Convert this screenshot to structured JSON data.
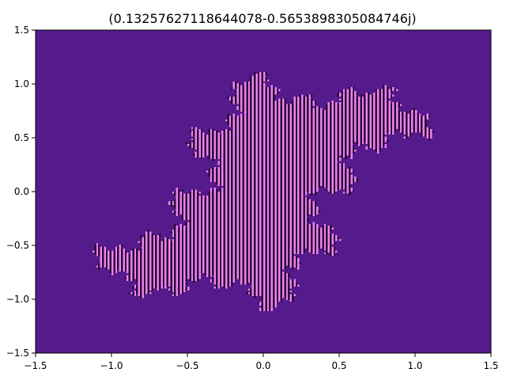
{
  "chart_data": {
    "type": "heatmap",
    "title": "(0.13257627118644078-0.5653898305084746j)",
    "xlabel": "",
    "ylabel": "",
    "xlim": [
      -1.5,
      1.5
    ],
    "ylim": [
      -1.5,
      1.5
    ],
    "x_ticks": [
      "−1.5",
      "−1.0",
      "−0.5",
      "0.0",
      "0.5",
      "1.0",
      "1.5"
    ],
    "y_ticks": [
      "1.5",
      "1.0",
      "0.5",
      "0.0",
      "−0.5",
      "−1.0",
      "−1.5"
    ],
    "x_tick_values": [
      -1.5,
      -1.0,
      -0.5,
      0.0,
      0.5,
      1.0,
      1.5
    ],
    "y_tick_values": [
      1.5,
      1.0,
      0.5,
      0.0,
      -0.5,
      -1.0,
      -1.5
    ],
    "julia_c": {
      "re": 0.13257627118644078,
      "im": -0.5653898305084746
    },
    "grid": false,
    "colors": {
      "escaped": "#551a8b",
      "filled": "#ee82ee",
      "stripe": "#2a0a3a"
    }
  }
}
